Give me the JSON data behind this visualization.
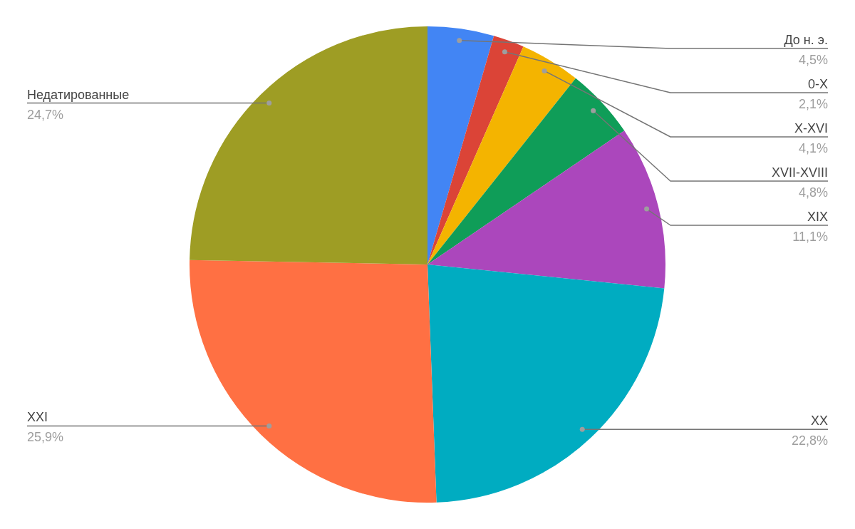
{
  "chart_data": {
    "type": "pie",
    "categories": [
      "До н. э.",
      "0-X",
      "X-XVI",
      "XVII-XVIII",
      "XIX",
      "XX",
      "XXI",
      "Недатированные"
    ],
    "values": [
      4.5,
      2.1,
      4.1,
      4.8,
      11.1,
      22.8,
      25.9,
      24.7
    ],
    "colors": [
      "#4285f4",
      "#db4437",
      "#f4b400",
      "#0f9d58",
      "#ab47bc",
      "#00acc1",
      "#ff7043",
      "#9e9d24"
    ],
    "value_labels": [
      "4,5%",
      "2,1%",
      "4,1%",
      "4,8%",
      "11,1%",
      "22,8%",
      "25,9%",
      "24,7%"
    ],
    "legend": false
  }
}
